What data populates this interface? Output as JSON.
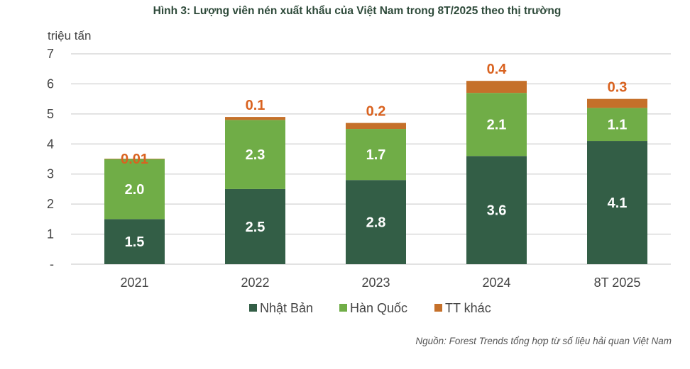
{
  "chart_data": {
    "type": "bar",
    "stacked": true,
    "title": "Hình 3: Lượng viên nén xuất khẩu của Việt Nam trong 8T/2025 theo thị trường",
    "ylabel": "triệu tấn",
    "xlabel": "",
    "ylim": [
      0,
      7
    ],
    "yticks": [
      "-",
      "1",
      "2",
      "3",
      "4",
      "5",
      "6",
      "7"
    ],
    "grid": true,
    "legend_position": "bottom",
    "categories": [
      "2021",
      "2022",
      "2023",
      "2024",
      "8T 2025"
    ],
    "series": [
      {
        "name": "Nhật Bản",
        "color": "#335e46",
        "values": [
          1.5,
          2.5,
          2.8,
          3.6,
          4.1
        ],
        "labels": [
          "1.5",
          "2.5",
          "2.8",
          "3.6",
          "4.1"
        ]
      },
      {
        "name": "Hàn Quốc",
        "color": "#70ad47",
        "values": [
          2.0,
          2.3,
          1.7,
          2.1,
          1.1
        ],
        "labels": [
          "2.0",
          "2.3",
          "1.7",
          "2.1",
          "1.1"
        ]
      },
      {
        "name": "TT khác",
        "color": "#c5702a",
        "values": [
          0.01,
          0.1,
          0.2,
          0.4,
          0.3
        ],
        "labels": [
          "0.01",
          "0.1",
          "0.2",
          "0.4",
          "0.3"
        ]
      }
    ],
    "source": "Nguồn: Forest Trends tổng hợp từ số liệu hải quan Việt Nam"
  }
}
